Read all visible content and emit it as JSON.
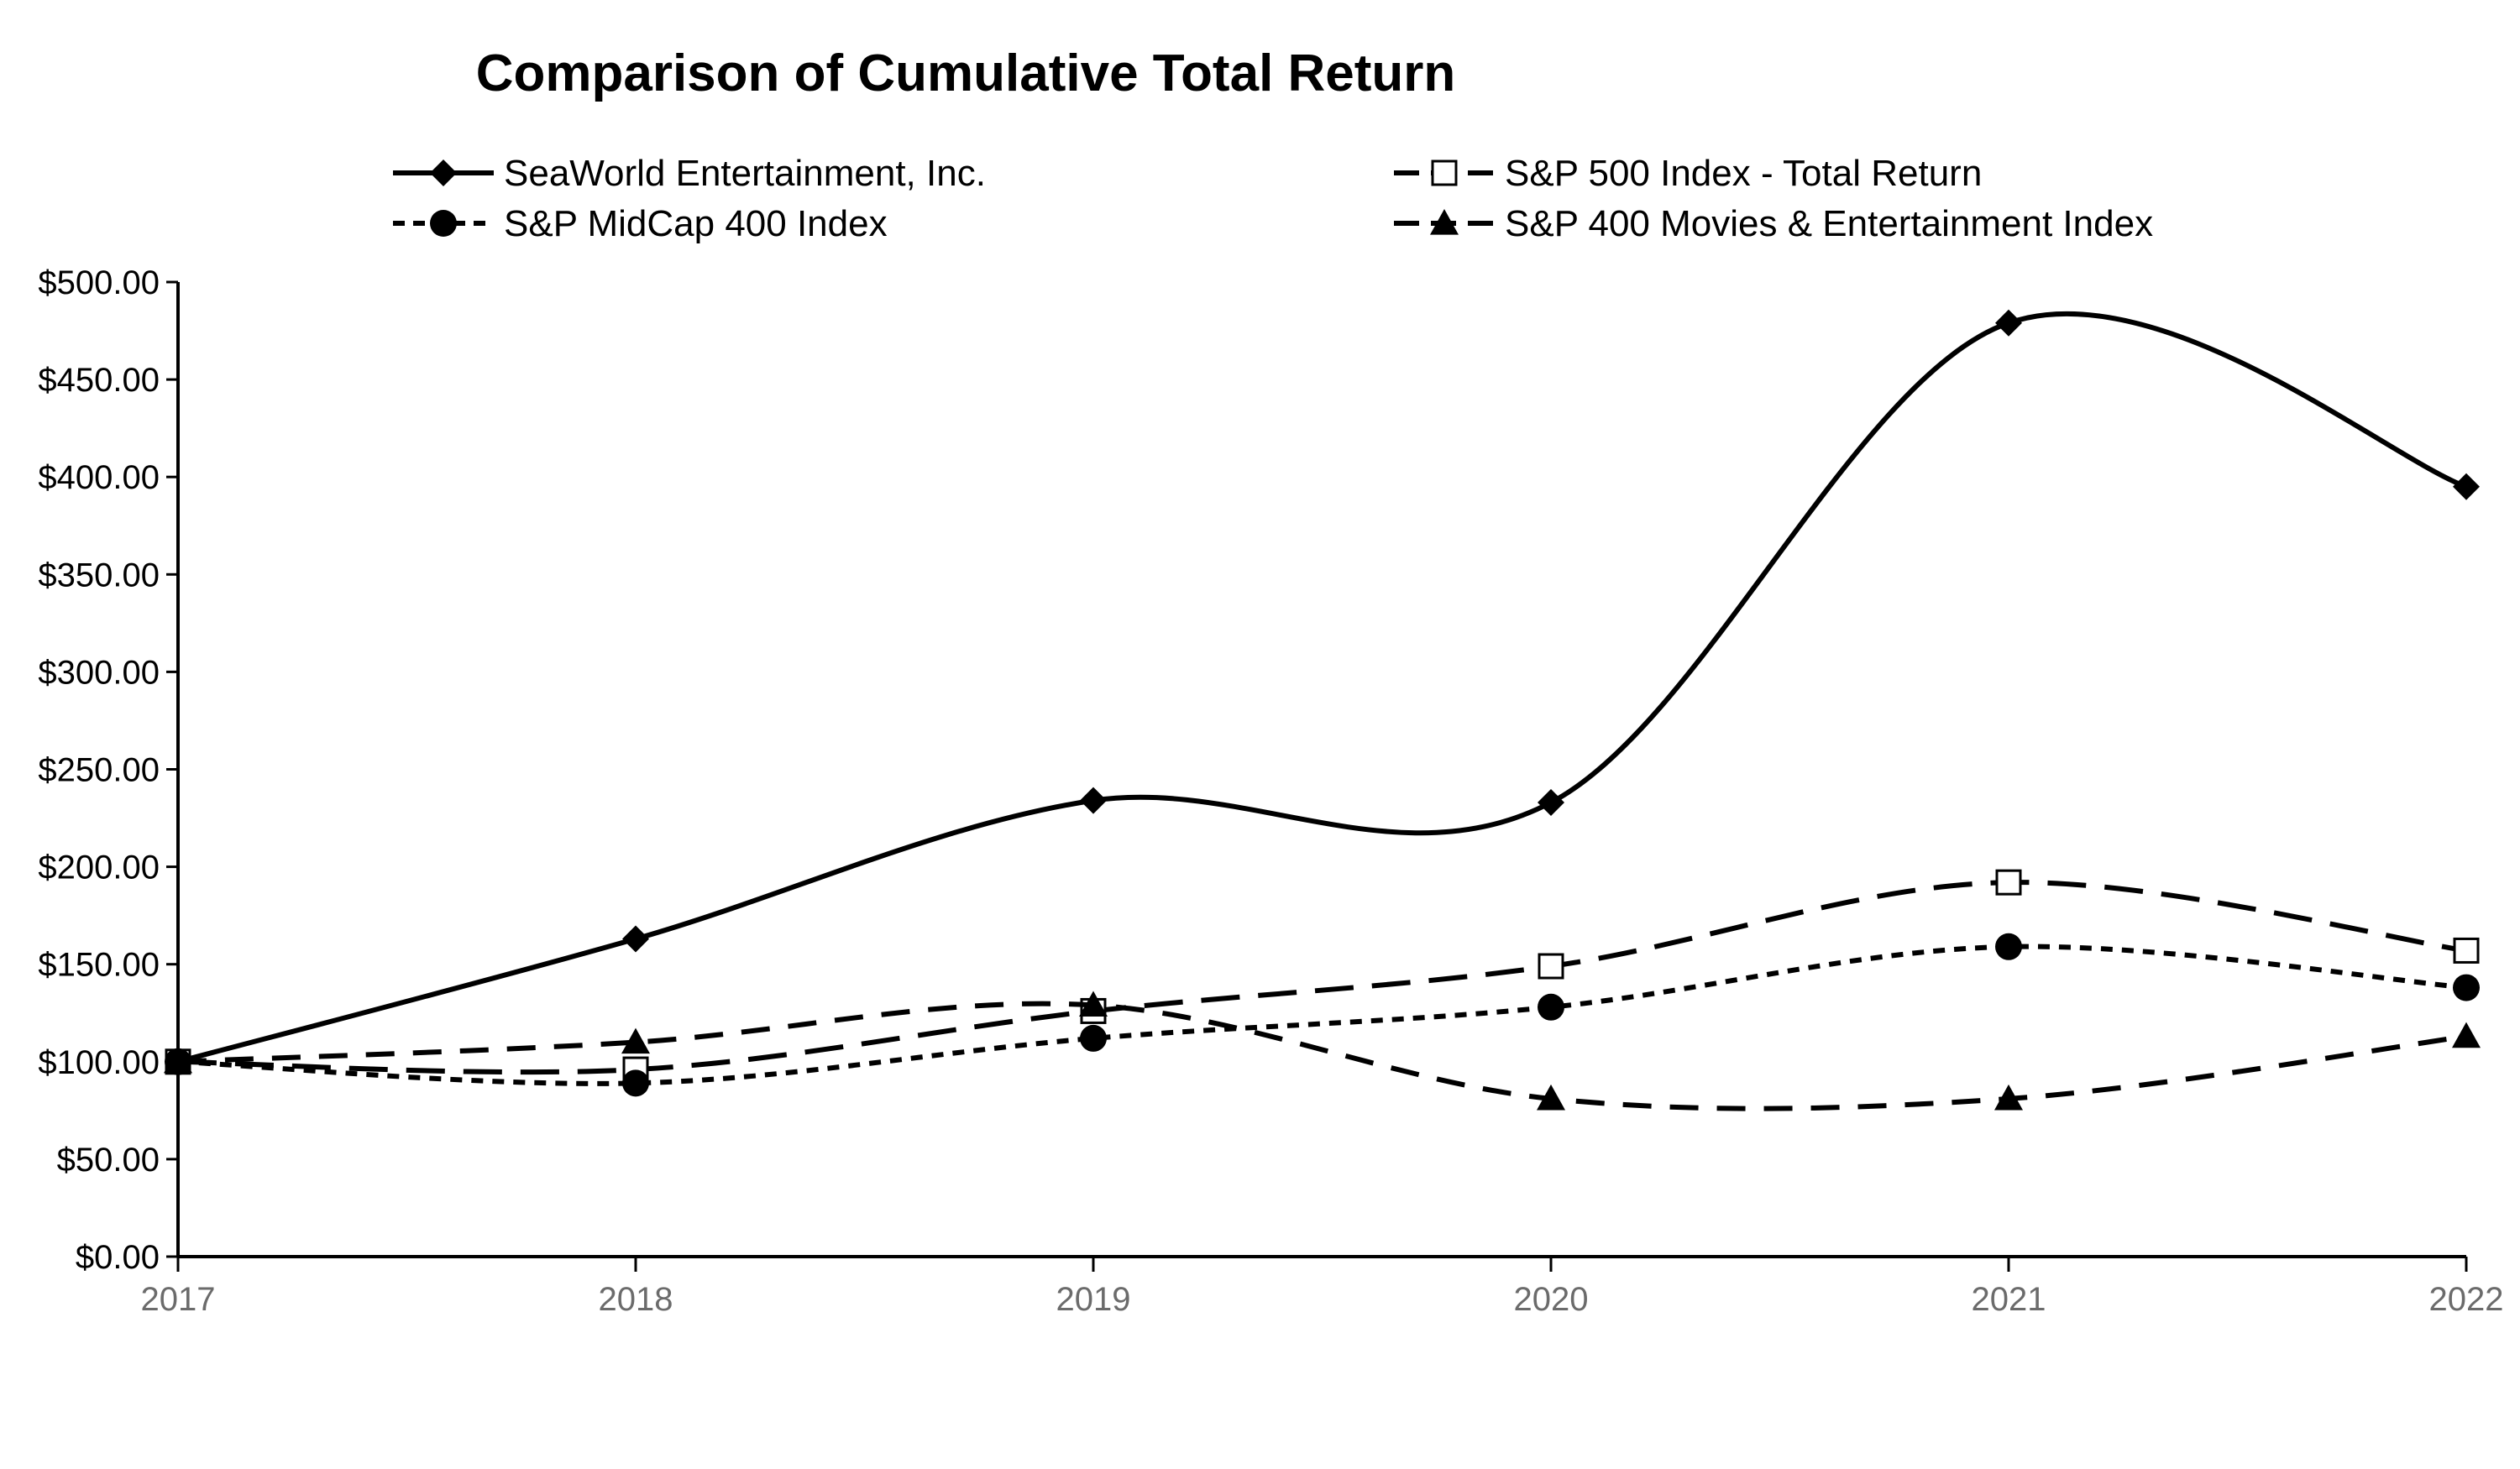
{
  "chart_data": {
    "type": "line",
    "title": "Comparison of Cumulative Total Return",
    "xlabel": "",
    "ylabel": "",
    "categories": [
      "2017",
      "2018",
      "2019",
      "2020",
      "2021",
      "2022"
    ],
    "ylim": [
      0,
      500
    ],
    "ytick_values": [
      0,
      50,
      100,
      150,
      200,
      250,
      300,
      350,
      400,
      450,
      500
    ],
    "ytick_labels": [
      "$0.00",
      "$50.00",
      "$100.00",
      "$150.00",
      "$200.00",
      "$250.00",
      "$300.00",
      "$350.00",
      "$400.00",
      "$450.00",
      "$500.00"
    ],
    "grid": false,
    "legend_position": "top",
    "series": [
      {
        "name": "SeaWorld Entertainment, Inc.",
        "values": [
          100,
          163,
          234,
          233,
          479,
          395
        ],
        "marker": "diamond",
        "line_style": "solid",
        "color": "#000000"
      },
      {
        "name": "S&P 500 Index - Total Return",
        "values": [
          100,
          96,
          126,
          149,
          192,
          157
        ],
        "marker": "open-square",
        "line_style": "long-dash",
        "color": "#000000"
      },
      {
        "name": "S&P MidCap 400 Index",
        "values": [
          100,
          89,
          112,
          128,
          159,
          138
        ],
        "marker": "circle",
        "line_style": "short-dash",
        "color": "#000000"
      },
      {
        "name": "S&P 400 Movies & Entertainment Index",
        "values": [
          100,
          110,
          129,
          81,
          81,
          113
        ],
        "marker": "triangle",
        "line_style": "medium-dash",
        "color": "#000000"
      }
    ]
  }
}
